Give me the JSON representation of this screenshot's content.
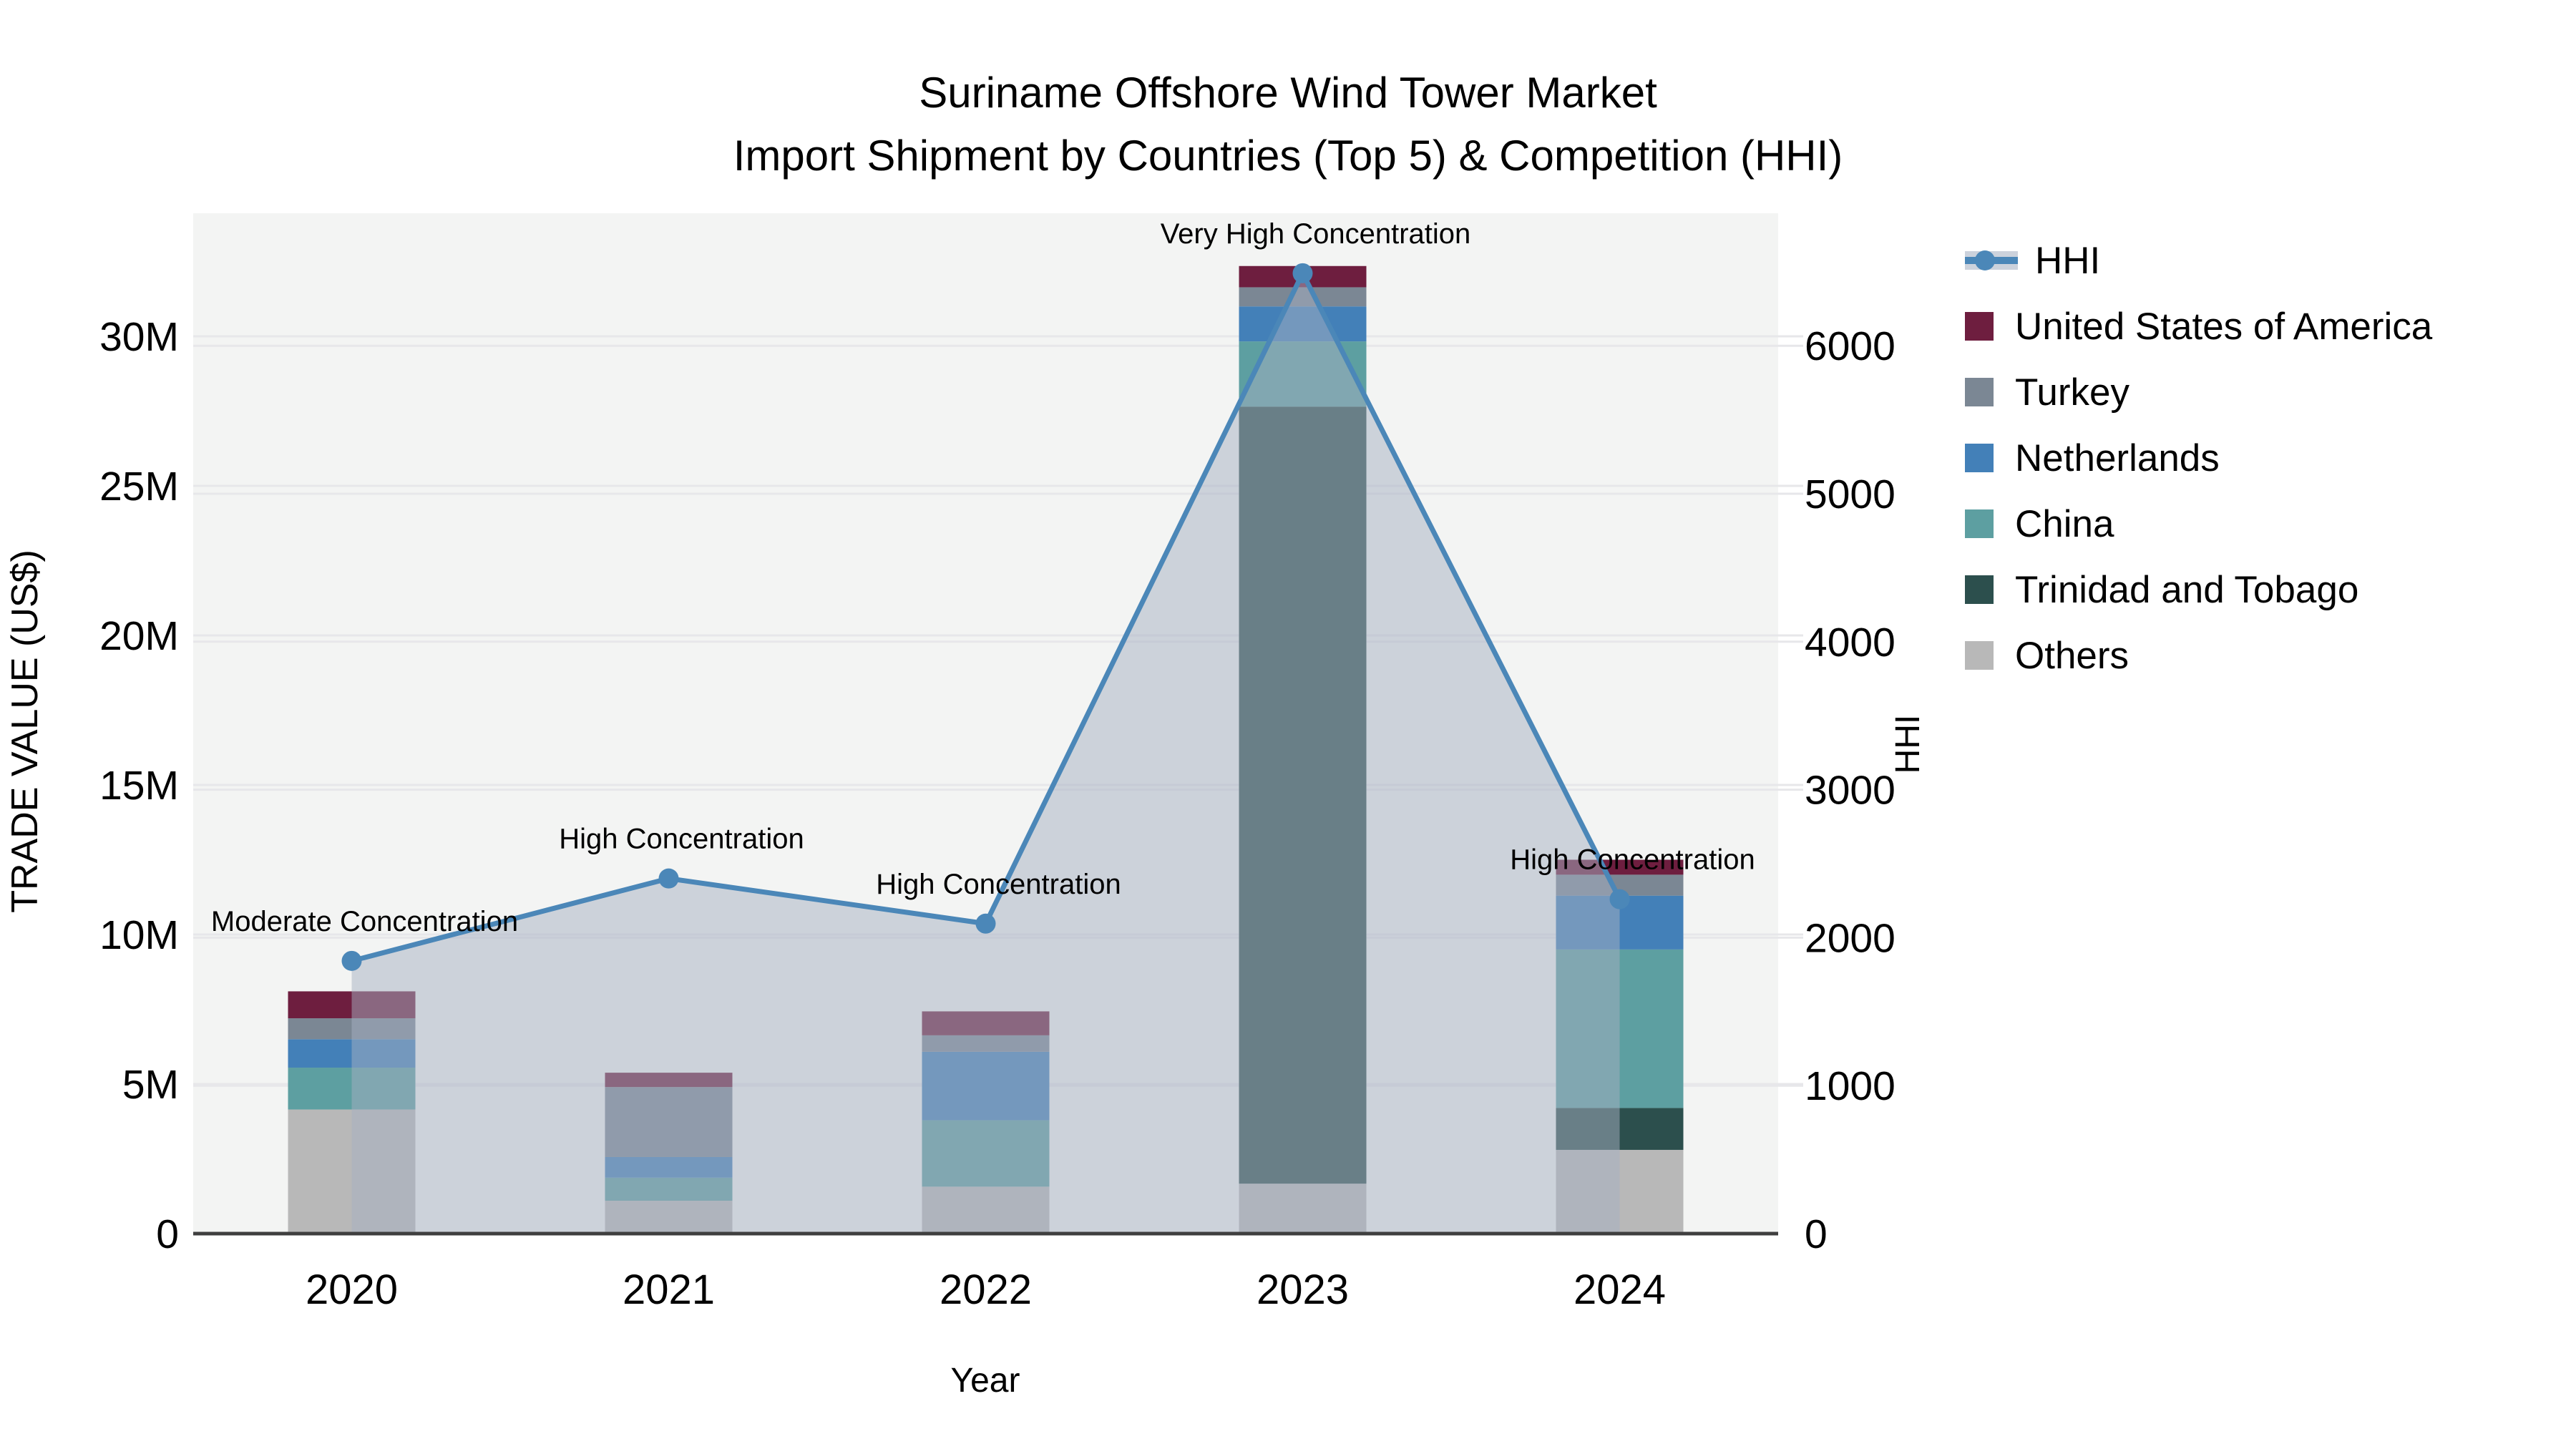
{
  "title": {
    "line1": "Suriname Offshore Wind Tower Market",
    "line2": "Import Shipment by Countries (Top 5) & Competition (HHI)"
  },
  "axes": {
    "x_title": "Year",
    "y_left_title": "TRADE VALUE (US$)",
    "y_right_title": "HHI"
  },
  "legend": {
    "items": [
      {
        "label": "HHI",
        "kind": "line",
        "color": "#4b87b8"
      },
      {
        "label": "United States of America",
        "kind": "square",
        "color": "#6e1e3f"
      },
      {
        "label": "Turkey",
        "kind": "square",
        "color": "#7b8794"
      },
      {
        "label": "Netherlands",
        "kind": "square",
        "color": "#4380b8"
      },
      {
        "label": "China",
        "kind": "square",
        "color": "#5d9fa1"
      },
      {
        "label": "Trinidad and Tobago",
        "kind": "square",
        "color": "#2c4f4d"
      },
      {
        "label": "Others",
        "kind": "square",
        "color": "#b8b8b8"
      }
    ]
  },
  "colors": {
    "plot_bg": "#f3f4f3",
    "gridline": "#e7e7ea",
    "baseline": "#3f3f3f",
    "hhi_line": "#4b87b8",
    "hhi_area": "#a5afc1"
  },
  "chart_data": {
    "type": "bar",
    "subtype": "stacked-bar-with-line",
    "categories": [
      "2020",
      "2021",
      "2022",
      "2023",
      "2024"
    ],
    "bar_unit": "US$",
    "series": [
      {
        "name": "Others",
        "color": "#b8b8b8",
        "values": [
          4150000,
          1100000,
          1570000,
          1670000,
          2800000
        ]
      },
      {
        "name": "Trinidad and Tobago",
        "color": "#2c4f4d",
        "values": [
          0,
          0,
          0,
          25980000,
          1400000
        ]
      },
      {
        "name": "China",
        "color": "#5d9fa1",
        "values": [
          1400000,
          770000,
          2220000,
          2180000,
          5300000
        ]
      },
      {
        "name": "Netherlands",
        "color": "#4380b8",
        "values": [
          950000,
          690000,
          2290000,
          1170000,
          1800000
        ]
      },
      {
        "name": "Turkey",
        "color": "#7b8794",
        "values": [
          700000,
          2340000,
          550000,
          640000,
          700000
        ]
      },
      {
        "name": "United States of America",
        "color": "#6e1e3f",
        "values": [
          900000,
          480000,
          800000,
          710000,
          500000
        ]
      }
    ],
    "line_series": {
      "name": "HHI",
      "color": "#4b87b8",
      "values": [
        1843,
        2400,
        2095,
        6490,
        2260
      ]
    },
    "annotations": [
      "Moderate Concentration",
      "High Concentration",
      "High Concentration",
      "Very High Concentration",
      "High Concentration"
    ],
    "title": "Suriname Offshore Wind Tower Market Import Shipment by Countries (Top 5) & Competition (HHI)",
    "xlabel": "Year",
    "ylabel_left": "TRADE VALUE (US$)",
    "ylabel_right": "HHI",
    "y_left_ticks": {
      "values": [
        0,
        5000000,
        10000000,
        15000000,
        20000000,
        25000000,
        30000000
      ],
      "labels": [
        "0",
        "5M",
        "10M",
        "15M",
        "20M",
        "25M",
        "30M"
      ]
    },
    "y_right_ticks": {
      "values": [
        0,
        1000,
        2000,
        3000,
        4000,
        5000,
        6000
      ],
      "labels": [
        "0",
        "1000",
        "2000",
        "3000",
        "4000",
        "5000",
        "6000"
      ]
    },
    "ylim_left": [
      0,
      34000000
    ],
    "ylim_right": [
      0,
      6880
    ],
    "grid": true,
    "legend_position": "right"
  }
}
